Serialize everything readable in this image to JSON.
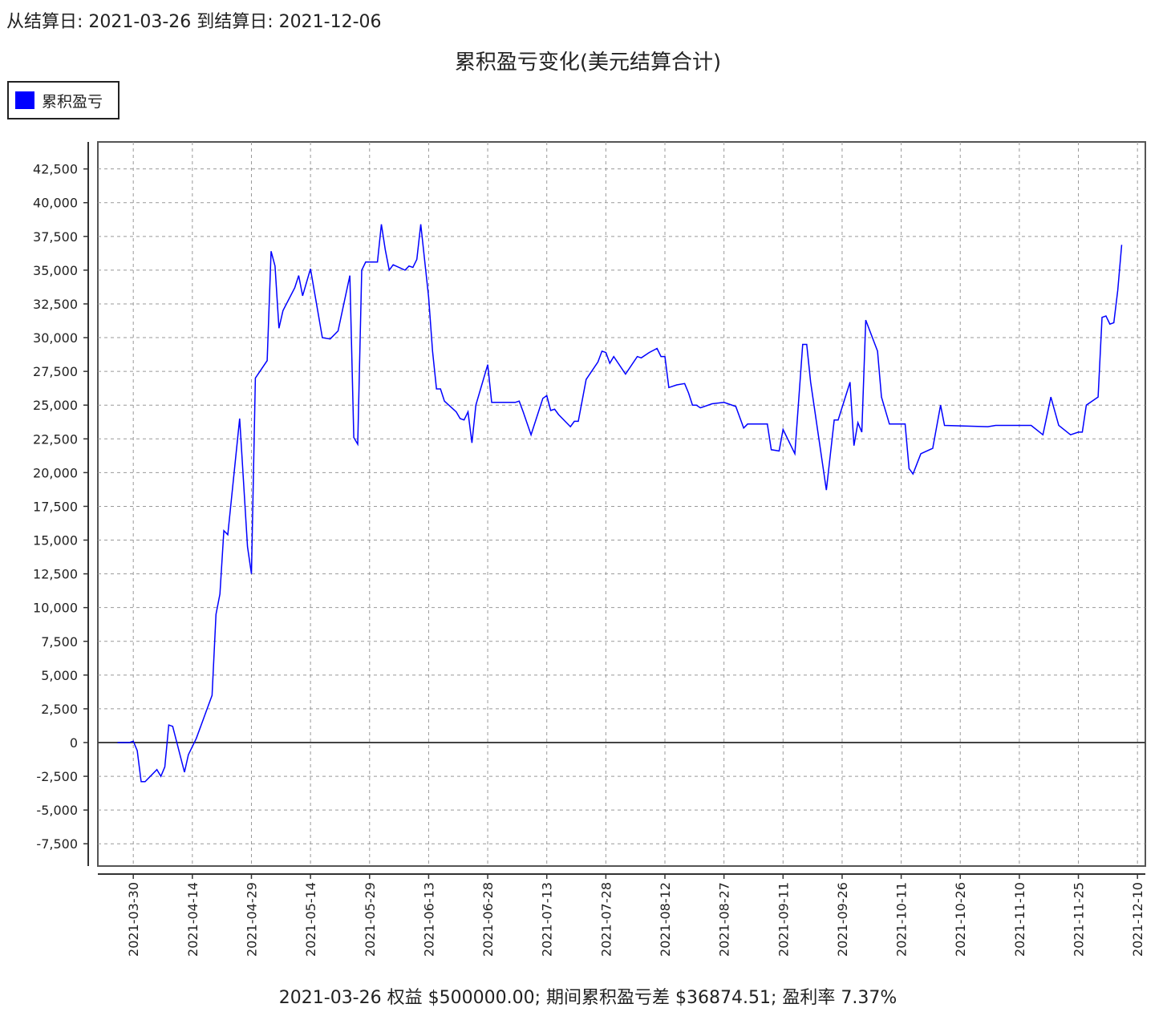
{
  "header": "从结算日: 2021-03-26 到结算日: 2021-12-06",
  "footer": "2021-03-26 权益 $500000.00; 期间累积盈亏差 $36874.51; 盈利率 7.37%",
  "chart_data": {
    "type": "line",
    "title": "累积盈亏变化(美元结算合计)",
    "legend_position": "top-left",
    "grid": true,
    "xlim": [
      "2021-03-21",
      "2021-12-12"
    ],
    "ylim": [
      -9150,
      44500
    ],
    "xticks": [
      "2021-03-30",
      "2021-04-14",
      "2021-04-29",
      "2021-05-14",
      "2021-05-29",
      "2021-06-13",
      "2021-06-28",
      "2021-07-13",
      "2021-07-28",
      "2021-08-12",
      "2021-08-27",
      "2021-09-11",
      "2021-09-26",
      "2021-10-11",
      "2021-10-26",
      "2021-11-10",
      "2021-11-25",
      "2021-12-10"
    ],
    "yticks": [
      {
        "value": -7500,
        "label": "-7,500"
      },
      {
        "value": -5000,
        "label": "-5,000"
      },
      {
        "value": -2500,
        "label": "-2,500"
      },
      0,
      {
        "value": 2500,
        "label": "2,500"
      },
      {
        "value": 5000,
        "label": "5,000"
      },
      {
        "value": 7500,
        "label": "7,500"
      },
      {
        "value": 10000,
        "label": "10,000"
      },
      {
        "value": 12500,
        "label": "12,500"
      },
      {
        "value": 15000,
        "label": "15,000"
      },
      {
        "value": 17500,
        "label": "17,500"
      },
      {
        "value": 20000,
        "label": "20,000"
      },
      {
        "value": 22500,
        "label": "22,500"
      },
      {
        "value": 25000,
        "label": "25,000"
      },
      {
        "value": 27500,
        "label": "27,500"
      },
      {
        "value": 30000,
        "label": "30,000"
      },
      {
        "value": 32500,
        "label": "32,500"
      },
      {
        "value": 35000,
        "label": "35,000"
      },
      {
        "value": 37500,
        "label": "37,500"
      },
      {
        "value": 40000,
        "label": "40,000"
      },
      {
        "value": 42500,
        "label": "42,500"
      }
    ],
    "x": [
      "2021-03-26",
      "2021-03-29",
      "2021-03-30",
      "2021-03-31",
      "2021-04-01",
      "2021-04-02",
      "2021-04-05",
      "2021-04-06",
      "2021-04-07",
      "2021-04-08",
      "2021-04-09",
      "2021-04-12",
      "2021-04-13",
      "2021-04-15",
      "2021-04-19",
      "2021-04-20",
      "2021-04-21",
      "2021-04-22",
      "2021-04-23",
      "2021-04-26",
      "2021-04-28",
      "2021-04-29",
      "2021-04-30",
      "2021-05-03",
      "2021-05-04",
      "2021-05-05",
      "2021-05-06",
      "2021-05-07",
      "2021-05-10",
      "2021-05-11",
      "2021-05-12",
      "2021-05-14",
      "2021-05-17",
      "2021-05-19",
      "2021-05-21",
      "2021-05-24",
      "2021-05-25",
      "2021-05-26",
      "2021-05-27",
      "2021-05-28",
      "2021-05-31",
      "2021-06-01",
      "2021-06-02",
      "2021-06-03",
      "2021-06-04",
      "2021-06-07",
      "2021-06-08",
      "2021-06-09",
      "2021-06-10",
      "2021-06-11",
      "2021-06-13",
      "2021-06-14",
      "2021-06-15",
      "2021-06-16",
      "2021-06-17",
      "2021-06-20",
      "2021-06-21",
      "2021-06-22",
      "2021-06-23",
      "2021-06-24",
      "2021-06-25",
      "2021-06-28",
      "2021-06-29",
      "2021-06-30",
      "2021-07-03",
      "2021-07-05",
      "2021-07-06",
      "2021-07-07",
      "2021-07-09",
      "2021-07-12",
      "2021-07-13",
      "2021-07-14",
      "2021-07-15",
      "2021-07-16",
      "2021-07-19",
      "2021-07-20",
      "2021-07-21",
      "2021-07-23",
      "2021-07-26",
      "2021-07-27",
      "2021-07-28",
      "2021-07-29",
      "2021-07-30",
      "2021-08-02",
      "2021-08-05",
      "2021-08-06",
      "2021-08-08",
      "2021-08-10",
      "2021-08-11",
      "2021-08-12",
      "2021-08-13",
      "2021-08-15",
      "2021-08-17",
      "2021-08-18",
      "2021-08-19",
      "2021-08-20",
      "2021-08-21",
      "2021-08-24",
      "2021-08-27",
      "2021-08-30",
      "2021-09-01",
      "2021-09-02",
      "2021-09-07",
      "2021-09-08",
      "2021-09-10",
      "2021-09-11",
      "2021-09-14",
      "2021-09-16",
      "2021-09-17",
      "2021-09-18",
      "2021-09-22",
      "2021-09-24",
      "2021-09-25",
      "2021-09-28",
      "2021-09-29",
      "2021-09-30",
      "2021-10-01",
      "2021-10-02",
      "2021-10-05",
      "2021-10-06",
      "2021-10-08",
      "2021-10-12",
      "2021-10-13",
      "2021-10-14",
      "2021-10-16",
      "2021-10-19",
      "2021-10-21",
      "2021-10-22",
      "2021-11-02",
      "2021-11-04",
      "2021-11-13",
      "2021-11-16",
      "2021-11-18",
      "2021-11-20",
      "2021-11-23",
      "2021-11-25",
      "2021-11-26",
      "2021-11-27",
      "2021-11-30",
      "2021-12-01",
      "2021-12-02",
      "2021-12-03",
      "2021-12-04",
      "2021-12-05",
      "2021-12-06"
    ],
    "series": [
      {
        "name": "累积盈亏",
        "color": "#0000ff",
        "values": [
          0,
          0,
          100,
          -600,
          -2900,
          -2900,
          -2000,
          -2500,
          -1800,
          1300,
          1200,
          -2200,
          -900,
          300,
          3500,
          9500,
          11000,
          15700,
          15400,
          24000,
          14500,
          12500,
          27000,
          28300,
          36400,
          35300,
          30700,
          32000,
          33700,
          34600,
          33100,
          35100,
          30000,
          29900,
          30500,
          34600,
          22600,
          22100,
          35000,
          35600,
          35600,
          38400,
          36500,
          35000,
          35400,
          35000,
          35300,
          35200,
          35800,
          38400,
          33000,
          29000,
          26200,
          26200,
          25300,
          24500,
          24000,
          23900,
          24500,
          22200,
          25000,
          28000,
          25200,
          25200,
          25200,
          25200,
          25300,
          24500,
          22800,
          25500,
          25700,
          24600,
          24700,
          24300,
          23400,
          23800,
          23800,
          26900,
          28200,
          29000,
          28900,
          28100,
          28600,
          27300,
          28600,
          28500,
          28900,
          29200,
          28600,
          28600,
          26300,
          26500,
          26600,
          25900,
          25000,
          25000,
          24800,
          25100,
          25200,
          24900,
          23300,
          23600,
          23600,
          21700,
          21600,
          23200,
          21400,
          29500,
          29500,
          26700,
          18700,
          23900,
          23900,
          26700,
          22000,
          23700,
          23000,
          31300,
          29000,
          25600,
          23600,
          23600,
          20300,
          19900,
          21400,
          21800,
          25000,
          23500,
          23400,
          23500,
          23500,
          22800,
          25600,
          23500,
          22800,
          23000,
          23000,
          25000,
          25600,
          31500,
          31600,
          31000,
          31100,
          33500,
          36874.51
        ]
      }
    ]
  }
}
